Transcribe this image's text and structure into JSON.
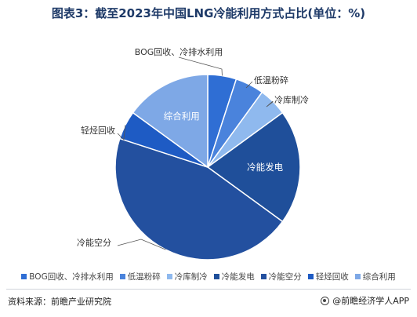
{
  "title": "图表3：截至2023年中国LNG冷能利用方式占比(单位：%)",
  "source": "资料来源：前瞻产业研究院",
  "brand": "@前瞻经济学人APP",
  "chart_data": {
    "type": "pie",
    "categories": [
      "BOG回收、冷排水利用",
      "低温粉碎",
      "冷库制冷",
      "冷能发电",
      "冷能空分",
      "轻烃回收",
      "综合利用"
    ],
    "values": [
      5,
      5,
      5,
      20,
      45,
      5,
      15
    ],
    "colors": [
      "#2f6ed4",
      "#4a83dc",
      "#8fb9ee",
      "#1f4f9a",
      "#23509f",
      "#1e5bc4",
      "#7ea8e6"
    ],
    "start_angle_deg": 0,
    "direction": "clockwise",
    "legend_position": "bottom"
  }
}
